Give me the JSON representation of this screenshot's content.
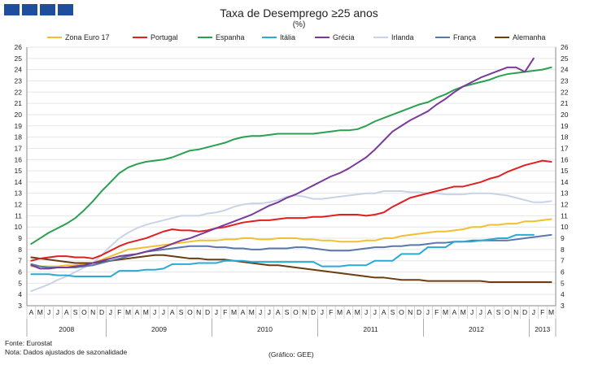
{
  "header": {
    "title": "Taxa de Desemprego ≥25 anos",
    "subtitle": "(%)"
  },
  "footer": {
    "source": "Fonte: Eurostat",
    "note": "Nota: Dados ajustados de sazonalidade",
    "credit": "(Gráfico: GEE)"
  },
  "colors": {
    "zona_euro": "#f0c030",
    "portugal": "#e02020",
    "espanha": "#2aa050",
    "italia": "#29abd4",
    "grecia": "#7a3a9a",
    "irlanda": "#c8d4e6",
    "franca": "#5878a8",
    "alemanha": "#6b3d10",
    "logo": "#1f4e9c",
    "grid": "#e6e6e6",
    "axis": "#888888"
  },
  "chart_data": {
    "type": "line",
    "title": "Taxa de Desemprego ≥25 anos",
    "ylabel": "(%)",
    "ylim": [
      3,
      26
    ],
    "yticks": [
      3,
      4,
      5,
      6,
      7,
      8,
      9,
      10,
      11,
      12,
      13,
      14,
      15,
      16,
      17,
      18,
      19,
      20,
      21,
      22,
      23,
      24,
      25,
      26
    ],
    "grid": true,
    "legend_position": "top",
    "x_month_labels": [
      "A",
      "M",
      "J",
      "J",
      "A",
      "S",
      "O",
      "N",
      "D",
      "J",
      "F",
      "M",
      "A",
      "M",
      "J",
      "J",
      "A",
      "S",
      "O",
      "N",
      "D",
      "J",
      "F",
      "M",
      "A",
      "M",
      "J",
      "J",
      "A",
      "S",
      "O",
      "N",
      "D",
      "J",
      "F",
      "M",
      "A",
      "M",
      "J",
      "J",
      "A",
      "S",
      "O",
      "N",
      "D",
      "J",
      "F",
      "M",
      "A",
      "M",
      "J",
      "J",
      "A",
      "S",
      "O",
      "N",
      "D",
      "J",
      "F",
      "M"
    ],
    "x_year_labels": [
      "2008",
      "2009",
      "2010",
      "2011",
      "2012",
      "2013"
    ],
    "series": [
      {
        "name": "Zona Euro 17",
        "key": "zona_euro",
        "values": [
          6.5,
          6.5,
          6.5,
          6.5,
          6.6,
          6.6,
          6.7,
          6.8,
          7.1,
          7.4,
          7.7,
          8.0,
          8.1,
          8.2,
          8.3,
          8.4,
          8.5,
          8.6,
          8.7,
          8.8,
          8.8,
          8.8,
          8.9,
          8.9,
          9.0,
          9.0,
          8.9,
          8.9,
          9.0,
          9.0,
          9.0,
          8.9,
          8.9,
          8.8,
          8.8,
          8.7,
          8.7,
          8.7,
          8.8,
          8.8,
          9.0,
          9.0,
          9.2,
          9.3,
          9.4,
          9.5,
          9.6,
          9.6,
          9.7,
          9.8,
          10.0,
          10.0,
          10.2,
          10.2,
          10.3,
          10.3,
          10.5,
          10.5,
          10.6,
          10.7
        ]
      },
      {
        "name": "Portugal",
        "key": "portugal",
        "values": [
          7.0,
          7.2,
          7.3,
          7.4,
          7.4,
          7.3,
          7.3,
          7.2,
          7.5,
          7.9,
          8.3,
          8.6,
          8.8,
          9.0,
          9.3,
          9.6,
          9.8,
          9.7,
          9.7,
          9.6,
          9.7,
          9.9,
          10.0,
          10.2,
          10.4,
          10.5,
          10.6,
          10.6,
          10.7,
          10.8,
          10.8,
          10.8,
          10.9,
          10.9,
          11.0,
          11.1,
          11.1,
          11.1,
          11.0,
          11.1,
          11.3,
          11.8,
          12.2,
          12.6,
          12.8,
          13.0,
          13.2,
          13.4,
          13.6,
          13.6,
          13.8,
          14.0,
          14.3,
          14.5,
          14.9,
          15.2,
          15.5,
          15.7,
          15.9,
          15.8
        ]
      },
      {
        "name": "Espanha",
        "key": "espanha",
        "values": [
          8.5,
          9.0,
          9.5,
          9.9,
          10.3,
          10.8,
          11.5,
          12.3,
          13.2,
          14.0,
          14.8,
          15.3,
          15.6,
          15.8,
          15.9,
          16.0,
          16.2,
          16.5,
          16.8,
          16.9,
          17.1,
          17.3,
          17.5,
          17.8,
          18.0,
          18.1,
          18.1,
          18.2,
          18.3,
          18.3,
          18.3,
          18.3,
          18.3,
          18.4,
          18.5,
          18.6,
          18.6,
          18.7,
          19.0,
          19.4,
          19.7,
          20.0,
          20.3,
          20.6,
          20.9,
          21.1,
          21.5,
          21.8,
          22.2,
          22.5,
          22.7,
          22.9,
          23.1,
          23.4,
          23.6,
          23.7,
          23.8,
          23.9,
          24.0,
          24.2
        ]
      },
      {
        "name": "Itália",
        "key": "italia",
        "values": [
          5.8,
          5.8,
          5.8,
          5.7,
          5.7,
          5.6,
          5.6,
          5.6,
          5.6,
          5.6,
          6.1,
          6.1,
          6.1,
          6.2,
          6.2,
          6.3,
          6.7,
          6.7,
          6.7,
          6.8,
          6.8,
          6.8,
          7.0,
          7.0,
          7.0,
          6.9,
          6.9,
          6.9,
          6.9,
          6.9,
          6.9,
          6.9,
          6.9,
          6.5,
          6.5,
          6.5,
          6.6,
          6.6,
          6.6,
          7.0,
          7.0,
          7.0,
          7.6,
          7.6,
          7.6,
          8.2,
          8.2,
          8.2,
          8.7,
          8.7,
          8.7,
          8.8,
          8.9,
          9.0,
          9.0,
          9.3,
          9.3,
          9.3,
          null,
          null
        ]
      },
      {
        "name": "Grécia",
        "key": "grecia",
        "values": [
          6.6,
          6.3,
          6.3,
          6.4,
          6.4,
          6.5,
          6.6,
          6.8,
          7.0,
          7.2,
          7.4,
          7.5,
          7.6,
          7.8,
          8.0,
          8.2,
          8.5,
          8.8,
          9.0,
          9.3,
          9.6,
          9.9,
          10.2,
          10.5,
          10.8,
          11.1,
          11.5,
          11.9,
          12.2,
          12.6,
          12.9,
          13.3,
          13.7,
          14.1,
          14.5,
          14.8,
          15.2,
          15.7,
          16.2,
          16.9,
          17.7,
          18.5,
          19.0,
          19.5,
          19.9,
          20.3,
          20.9,
          21.4,
          22.0,
          22.5,
          22.9,
          23.3,
          23.6,
          23.9,
          24.2,
          24.2,
          23.8,
          25.0,
          null,
          null
        ]
      },
      {
        "name": "Irlanda",
        "key": "irlanda",
        "values": [
          4.3,
          4.6,
          4.9,
          5.3,
          5.6,
          6.0,
          6.4,
          6.8,
          7.5,
          8.3,
          9.0,
          9.5,
          9.9,
          10.2,
          10.4,
          10.6,
          10.8,
          11.0,
          11.0,
          11.0,
          11.2,
          11.3,
          11.5,
          11.8,
          12.0,
          12.1,
          12.1,
          12.2,
          12.4,
          12.7,
          12.8,
          12.7,
          12.5,
          12.5,
          12.6,
          12.7,
          12.8,
          12.9,
          13.0,
          13.0,
          13.2,
          13.2,
          13.2,
          13.1,
          13.1,
          13.0,
          13.0,
          12.9,
          12.9,
          12.9,
          13.0,
          13.0,
          13.0,
          12.9,
          12.8,
          12.6,
          12.4,
          12.2,
          12.2,
          12.3
        ]
      },
      {
        "name": "França",
        "key": "franca",
        "values": [
          6.7,
          6.5,
          6.4,
          6.4,
          6.4,
          6.4,
          6.5,
          6.6,
          6.8,
          7.0,
          7.2,
          7.4,
          7.6,
          7.8,
          7.9,
          8.0,
          8.1,
          8.2,
          8.3,
          8.3,
          8.3,
          8.2,
          8.2,
          8.1,
          8.1,
          8.0,
          8.0,
          8.1,
          8.1,
          8.1,
          8.2,
          8.2,
          8.1,
          8.0,
          7.9,
          7.9,
          7.9,
          8.0,
          8.1,
          8.2,
          8.2,
          8.3,
          8.3,
          8.4,
          8.4,
          8.5,
          8.6,
          8.6,
          8.7,
          8.7,
          8.8,
          8.8,
          8.8,
          8.8,
          8.8,
          8.9,
          9.0,
          9.1,
          9.2,
          9.3
        ]
      },
      {
        "name": "Alemanha",
        "key": "alemanha",
        "values": [
          7.3,
          7.2,
          7.1,
          7.0,
          6.9,
          6.8,
          6.8,
          6.8,
          6.9,
          7.0,
          7.1,
          7.2,
          7.3,
          7.4,
          7.5,
          7.5,
          7.4,
          7.3,
          7.2,
          7.2,
          7.1,
          7.1,
          7.1,
          7.0,
          6.9,
          6.8,
          6.7,
          6.6,
          6.6,
          6.5,
          6.4,
          6.3,
          6.2,
          6.1,
          6.0,
          5.9,
          5.8,
          5.7,
          5.6,
          5.5,
          5.5,
          5.4,
          5.3,
          5.3,
          5.3,
          5.2,
          5.2,
          5.2,
          5.2,
          5.2,
          5.2,
          5.2,
          5.1,
          5.1,
          5.1,
          5.1,
          5.1,
          5.1,
          5.1,
          5.1
        ]
      }
    ]
  }
}
